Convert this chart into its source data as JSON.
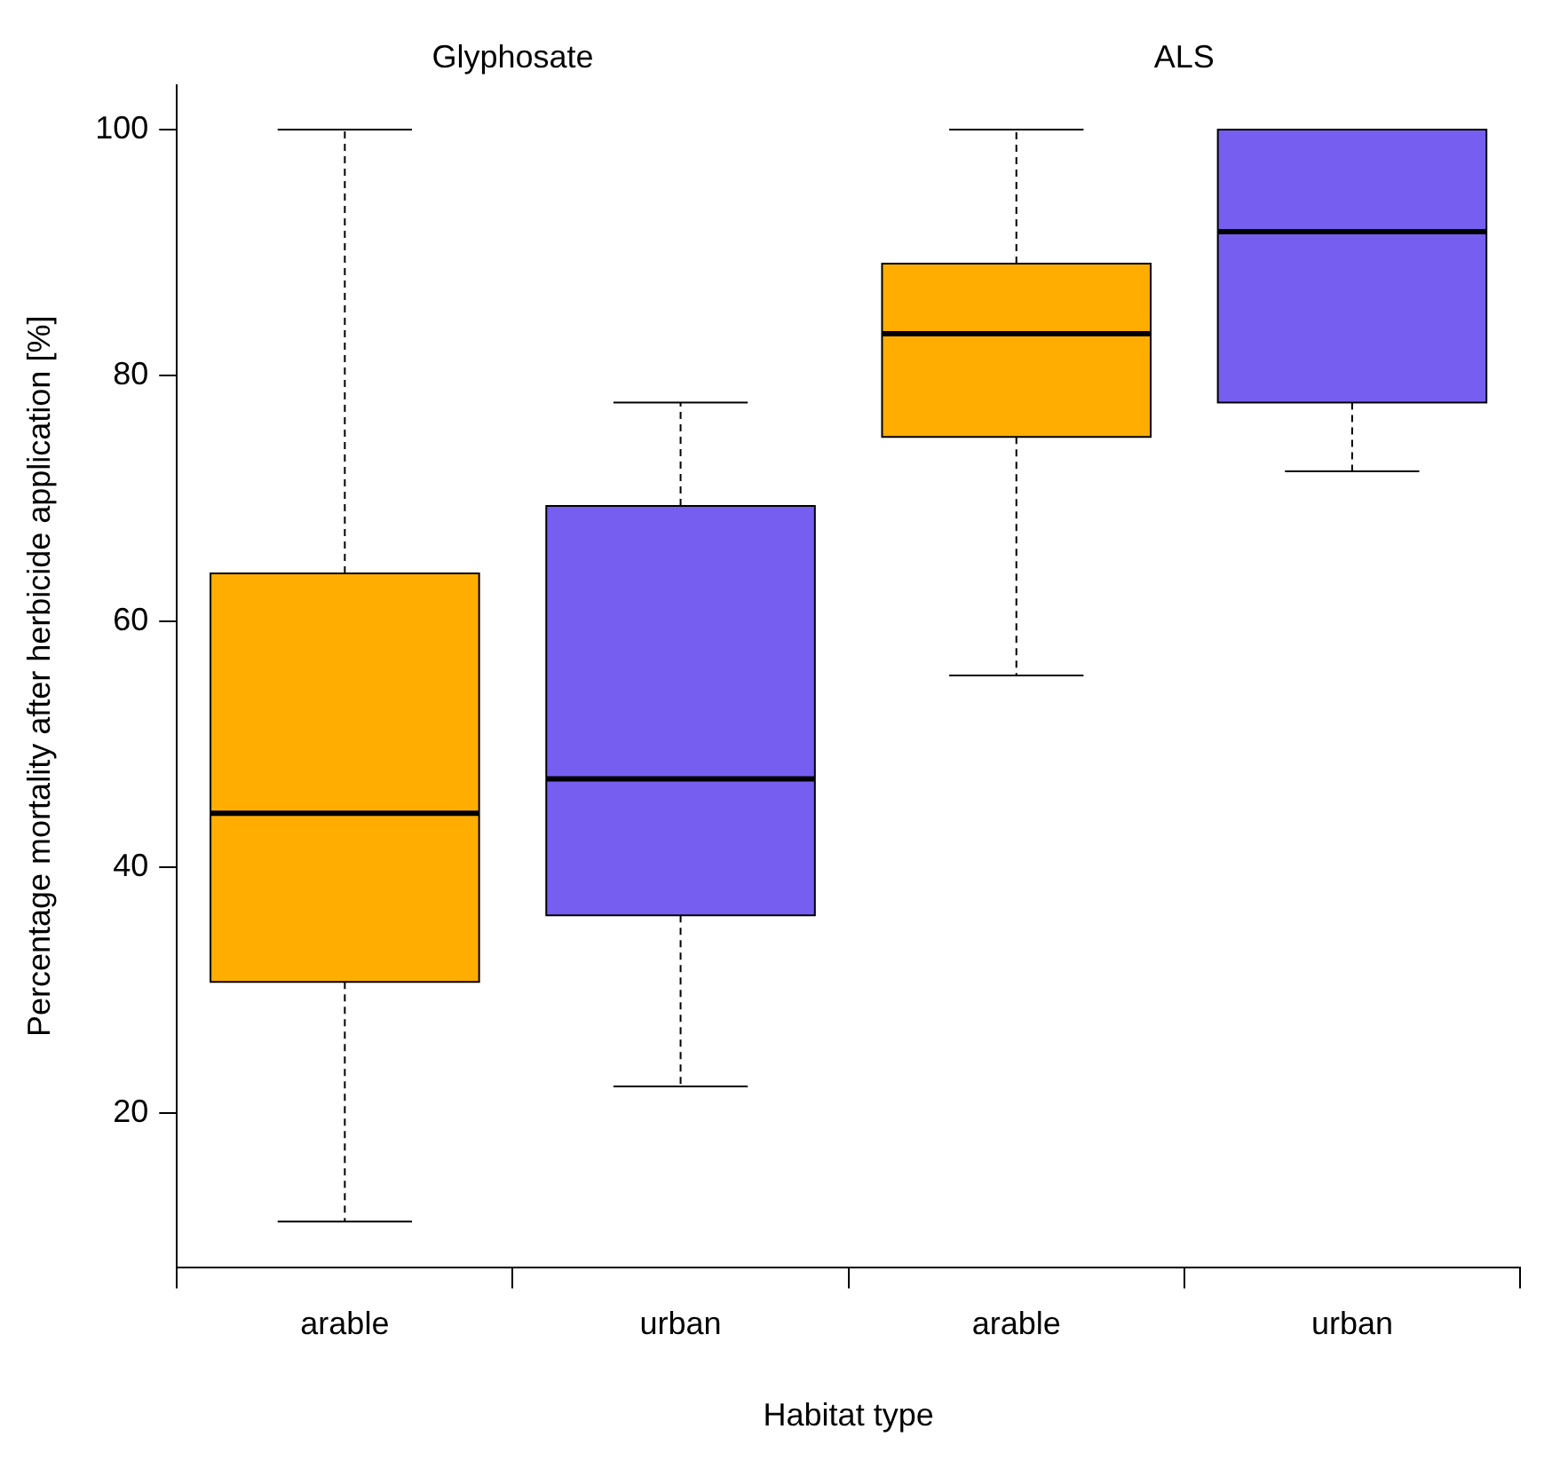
{
  "chart_data": {
    "type": "box",
    "xlabel": "Habitat type",
    "ylabel": "Percentage mortality after herbicide application [%]",
    "categories": [
      "arable",
      "urban",
      "arable",
      "urban"
    ],
    "colors": [
      "#ffae00",
      "#765ef0",
      "#ffae00",
      "#765ef0"
    ],
    "boxes": [
      {
        "low": 11.2,
        "q1": 30.7,
        "median": 44.4,
        "q3": 63.9,
        "high": 100
      },
      {
        "low": 22.2,
        "q1": 36.1,
        "median": 47.2,
        "q3": 69.4,
        "high": 77.8
      },
      {
        "low": 55.6,
        "q1": 75.0,
        "median": 83.4,
        "q3": 89.1,
        "high": 100
      },
      {
        "low": 72.2,
        "q1": 77.8,
        "median": 91.7,
        "q3": 100,
        "high": 100
      }
    ],
    "annotations": [
      "Glyphosate",
      "ALS"
    ],
    "ylim": [
      7.5,
      103.6
    ],
    "yticks": [
      20,
      40,
      60,
      80,
      100
    ],
    "grid": false,
    "legend": false
  }
}
